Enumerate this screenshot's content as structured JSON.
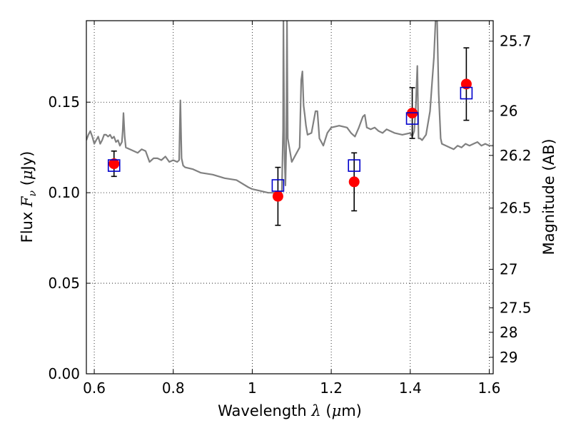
{
  "chart_data": {
    "type": "scatter",
    "title": "",
    "xlabel": "Wavelength λ (μm)",
    "ylabel": "Flux F_ν (μJy)",
    "y2label": "Magnitude (AB)",
    "xlim": [
      0.58,
      1.61
    ],
    "ylim": [
      0.0,
      0.195
    ],
    "grid": true,
    "legend": "none",
    "x_ticks": [
      {
        "value": 0.6,
        "label": "0.6"
      },
      {
        "value": 0.8,
        "label": "0.8"
      },
      {
        "value": 1.0,
        "label": "1"
      },
      {
        "value": 1.2,
        "label": "1.2"
      },
      {
        "value": 1.4,
        "label": "1.4"
      },
      {
        "value": 1.6,
        "label": "1.6"
      }
    ],
    "y_ticks": [
      {
        "value": 0.0,
        "label": "0.00"
      },
      {
        "value": 0.05,
        "label": "0.05"
      },
      {
        "value": 0.1,
        "label": "0.10"
      },
      {
        "value": 0.15,
        "label": "0.15"
      }
    ],
    "y2_ticks": [
      {
        "flux": 0.1837,
        "label": "25.7"
      },
      {
        "flux": 0.1451,
        "label": "26"
      },
      {
        "flux": 0.1206,
        "label": "26.2"
      },
      {
        "flux": 0.0915,
        "label": "26.5"
      },
      {
        "flux": 0.0577,
        "label": "27"
      },
      {
        "flux": 0.0364,
        "label": "27.5"
      },
      {
        "flux": 0.0229,
        "label": "28"
      },
      {
        "flux": 0.0091,
        "label": "29"
      }
    ],
    "series": [
      {
        "kind": "spectrum",
        "color": "#808080",
        "x": [
          0.58,
          0.585,
          0.59,
          0.595,
          0.6,
          0.605,
          0.61,
          0.615,
          0.62,
          0.625,
          0.63,
          0.635,
          0.64,
          0.645,
          0.65,
          0.655,
          0.66,
          0.665,
          0.67,
          0.672,
          0.674,
          0.677,
          0.68,
          0.69,
          0.7,
          0.71,
          0.72,
          0.73,
          0.74,
          0.75,
          0.76,
          0.77,
          0.78,
          0.79,
          0.8,
          0.81,
          0.815,
          0.818,
          0.821,
          0.825,
          0.83,
          0.85,
          0.87,
          0.9,
          0.93,
          0.96,
          0.99,
          1.0,
          1.02,
          1.04,
          1.06,
          1.07,
          1.075,
          1.078,
          1.079,
          1.081,
          1.082,
          1.084,
          1.086,
          1.088,
          1.09,
          1.1,
          1.11,
          1.12,
          1.124,
          1.127,
          1.13,
          1.133,
          1.136,
          1.14,
          1.15,
          1.16,
          1.165,
          1.17,
          1.175,
          1.18,
          1.19,
          1.2,
          1.22,
          1.24,
          1.25,
          1.26,
          1.27,
          1.28,
          1.285,
          1.29,
          1.3,
          1.31,
          1.32,
          1.33,
          1.34,
          1.36,
          1.38,
          1.4,
          1.405,
          1.41,
          1.414,
          1.418,
          1.421,
          1.425,
          1.43,
          1.44,
          1.45,
          1.455,
          1.46,
          1.464,
          1.468,
          1.472,
          1.477,
          1.48,
          1.5,
          1.51,
          1.52,
          1.53,
          1.54,
          1.55,
          1.56,
          1.57,
          1.58,
          1.59,
          1.6,
          1.61
        ],
        "y": [
          0.129,
          0.132,
          0.134,
          0.131,
          0.127,
          0.129,
          0.131,
          0.127,
          0.129,
          0.132,
          0.132,
          0.131,
          0.132,
          0.13,
          0.131,
          0.128,
          0.129,
          0.126,
          0.128,
          0.134,
          0.144,
          0.131,
          0.125,
          0.124,
          0.123,
          0.122,
          0.124,
          0.123,
          0.117,
          0.119,
          0.119,
          0.118,
          0.12,
          0.117,
          0.118,
          0.117,
          0.118,
          0.151,
          0.119,
          0.115,
          0.114,
          0.113,
          0.111,
          0.11,
          0.108,
          0.107,
          0.103,
          0.102,
          0.101,
          0.1,
          0.1,
          0.099,
          0.101,
          0.135,
          0.195,
          0.13,
          0.118,
          0.104,
          0.125,
          0.195,
          0.13,
          0.117,
          0.121,
          0.125,
          0.162,
          0.167,
          0.148,
          0.143,
          0.137,
          0.132,
          0.133,
          0.145,
          0.145,
          0.13,
          0.128,
          0.126,
          0.133,
          0.136,
          0.137,
          0.136,
          0.133,
          0.131,
          0.136,
          0.142,
          0.143,
          0.136,
          0.135,
          0.136,
          0.134,
          0.133,
          0.135,
          0.133,
          0.132,
          0.133,
          0.131,
          0.134,
          0.147,
          0.17,
          0.13,
          0.13,
          0.129,
          0.132,
          0.145,
          0.16,
          0.175,
          0.195,
          0.195,
          0.155,
          0.13,
          0.127,
          0.125,
          0.124,
          0.126,
          0.125,
          0.127,
          0.126,
          0.127,
          0.128,
          0.126,
          0.127,
          0.126,
          0.126
        ]
      },
      {
        "kind": "model-photometry",
        "marker": "open-square",
        "color": "#0000cc",
        "x": [
          0.65,
          1.065,
          1.258,
          1.405,
          1.542
        ],
        "y": [
          0.115,
          0.104,
          0.115,
          0.141,
          0.155
        ]
      },
      {
        "kind": "observed-photometry",
        "marker": "filled-circle",
        "color": "#ff0000",
        "x": [
          0.65,
          1.065,
          1.258,
          1.405,
          1.542
        ],
        "y": [
          0.116,
          0.098,
          0.106,
          0.144,
          0.16
        ],
        "yerr": [
          0.007,
          0.016,
          0.016,
          0.014,
          0.02
        ]
      }
    ]
  }
}
